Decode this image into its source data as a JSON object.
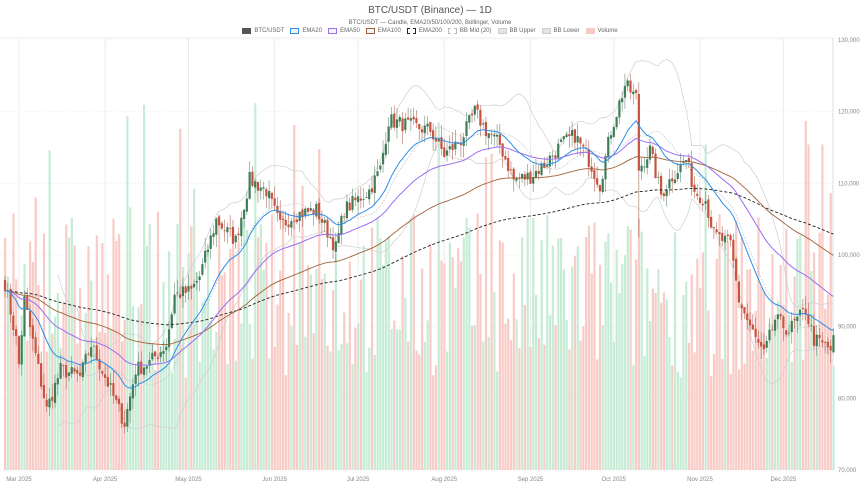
{
  "chart_data": {
    "type": "candlestick",
    "title": "BTC/USDT (Binance) — 1D",
    "subtitle": "BTC/USDT — Candle, EMA20/50/100/200, Bollinger, Volume",
    "legend": [
      {
        "label": "BTC/USDT",
        "color": "#555555",
        "style": "fill"
      },
      {
        "label": "EMA20",
        "color": "#2f8ee8",
        "style": "line"
      },
      {
        "label": "EMA50",
        "color": "#9b6ef0",
        "style": "line"
      },
      {
        "label": "EMA100",
        "color": "#a0623a",
        "style": "line"
      },
      {
        "label": "EMA200",
        "color": "#222222",
        "style": "dashed"
      },
      {
        "label": "BB Mid (20)",
        "color": "#bbbbbb",
        "style": "dotted"
      },
      {
        "label": "BB Upper",
        "color": "#cccccc",
        "style": "line"
      },
      {
        "label": "BB Lower",
        "color": "#cccccc",
        "style": "line"
      },
      {
        "label": "Volume",
        "color": "#f6c9c4",
        "style": "fill"
      }
    ],
    "legend_position": "top-center",
    "ylim": [
      70000,
      130000
    ],
    "y_ticks": [
      "70,000",
      "80,000",
      "90,000",
      "100,000",
      "110,000",
      "120,000",
      "130,000"
    ],
    "y_tick_values": [
      70000,
      80000,
      90000,
      100000,
      110000,
      120000,
      130000
    ],
    "y_axis_side": "right",
    "start_date": "2025-02-24",
    "num_days": 299,
    "x_ticks": [
      {
        "label": "Mar 2025",
        "day": 5
      },
      {
        "label": "Apr 2025",
        "day": 36
      },
      {
        "label": "May 2025",
        "day": 66
      },
      {
        "label": "Jun 2025",
        "day": 97
      },
      {
        "label": "Jul 2025",
        "day": 127
      },
      {
        "label": "Aug 2025",
        "day": 158
      },
      {
        "label": "Sep 2025",
        "day": 189
      },
      {
        "label": "Oct 2025",
        "day": 219
      },
      {
        "label": "Nov 2025",
        "day": 250
      },
      {
        "label": "Dec 2025",
        "day": 280
      }
    ],
    "close_keyframes": [
      [
        0,
        96100
      ],
      [
        4,
        88200
      ],
      [
        5,
        84700
      ],
      [
        7,
        93700
      ],
      [
        11,
        86000
      ],
      [
        15,
        78400
      ],
      [
        20,
        84000
      ],
      [
        27,
        83000
      ],
      [
        31,
        87500
      ],
      [
        36,
        83000
      ],
      [
        43,
        76500
      ],
      [
        47,
        84000
      ],
      [
        52,
        85000
      ],
      [
        58,
        87500
      ],
      [
        61,
        94400
      ],
      [
        67,
        95000
      ],
      [
        70,
        97000
      ],
      [
        76,
        104900
      ],
      [
        83,
        102000
      ],
      [
        88,
        110500
      ],
      [
        94,
        109000
      ],
      [
        99,
        104000
      ],
      [
        104,
        105600
      ],
      [
        112,
        106300
      ],
      [
        119,
        101000
      ],
      [
        122,
        106300
      ],
      [
        131,
        109000
      ],
      [
        135,
        112000
      ],
      [
        138,
        118800
      ],
      [
        146,
        118000
      ],
      [
        153,
        117400
      ],
      [
        158,
        114000
      ],
      [
        164,
        116000
      ],
      [
        169,
        120000
      ],
      [
        173,
        117400
      ],
      [
        178,
        115400
      ],
      [
        183,
        110500
      ],
      [
        189,
        111000
      ],
      [
        194,
        112600
      ],
      [
        200,
        115400
      ],
      [
        205,
        116700
      ],
      [
        210,
        113300
      ],
      [
        214,
        109800
      ],
      [
        218,
        117400
      ],
      [
        223,
        123700
      ],
      [
        227,
        122000
      ],
      [
        228,
        112000
      ],
      [
        232,
        114600
      ],
      [
        236,
        108400
      ],
      [
        240,
        111000
      ],
      [
        245,
        113300
      ],
      [
        248,
        109000
      ],
      [
        252,
        107700
      ],
      [
        255,
        102800
      ],
      [
        261,
        101400
      ],
      [
        264,
        93700
      ],
      [
        270,
        88200
      ],
      [
        273,
        86000
      ],
      [
        277,
        91000
      ],
      [
        282,
        89500
      ],
      [
        288,
        92300
      ],
      [
        291,
        88200
      ],
      [
        297,
        86800
      ],
      [
        298,
        88000
      ]
    ],
    "colors": {
      "up": "#3e7d57",
      "down": "#c9523c",
      "vol_up": "#c6ecd6",
      "vol_down": "#f8cbc6",
      "grid": "#ececec"
    }
  }
}
